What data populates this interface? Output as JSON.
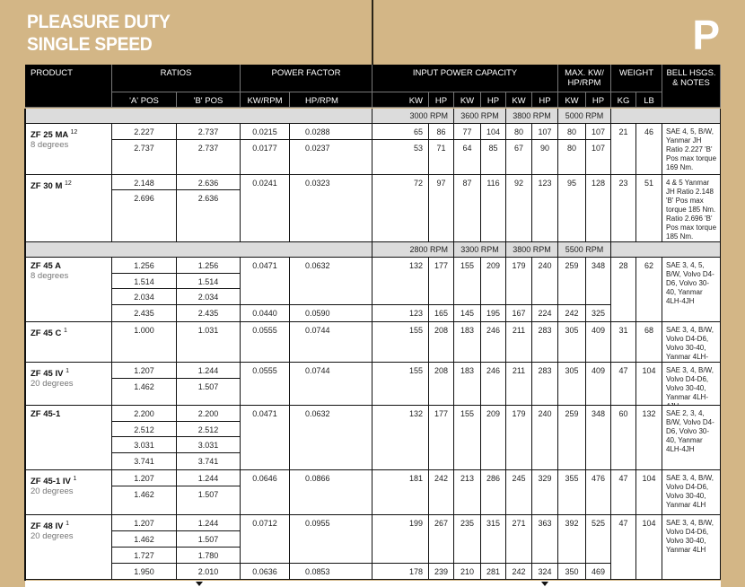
{
  "header": {
    "title_line1": "PLEASURE DUTY",
    "title_line2": "SINGLE SPEED",
    "section_letter": "P"
  },
  "columns": {
    "product": "PRODUCT",
    "ratios": "RATIOS",
    "power_factor": "POWER FACTOR",
    "input_power_capacity": "INPUT POWER CAPACITY",
    "max": "MAX. KW/ HP/RPM",
    "weight": "WEIGHT",
    "notes": "BELL HSGS. & NOTES",
    "sub": [
      "'A' POS",
      "'B' POS",
      "KW/RPM",
      "HP/RPM",
      "KW",
      "HP",
      "KW",
      "HP",
      "KW",
      "HP",
      "KW",
      "HP",
      "KG",
      "LB"
    ]
  },
  "rpm_rows": [
    [
      "3000 RPM",
      "3600 RPM",
      "3800 RPM",
      "5000 RPM"
    ],
    [
      "2800 RPM",
      "3300 RPM",
      "3800 RPM",
      "5500 RPM"
    ]
  ],
  "products": [
    {
      "name": "ZF 25 MA",
      "sup": "12",
      "subtitle": "8 degrees",
      "section": 0,
      "ratios": [
        [
          "2.227",
          "2.737"
        ],
        [
          "2.737",
          "2.737"
        ]
      ],
      "groups": [
        {
          "rows": 1,
          "kw_rpm": "0.0215",
          "hp_rpm": "0.0288",
          "power": [
            "65",
            "86",
            "77",
            "104",
            "80",
            "107",
            "80",
            "107"
          ]
        },
        {
          "rows": 1,
          "kw_rpm": "0.0177",
          "hp_rpm": "0.0237",
          "power": [
            "53",
            "71",
            "64",
            "85",
            "67",
            "90",
            "80",
            "107"
          ]
        }
      ],
      "kg": "21",
      "lb": "46",
      "notes": "SAE 4, 5, B/W, Yanmar JH Ratio 2.227 'B' Pos max torque 169 Nm."
    },
    {
      "name": "ZF 30 M",
      "sup": "12",
      "subtitle": "",
      "section": 0,
      "ratios": [
        [
          "2.148",
          "2.636"
        ],
        [
          "2.696",
          "2.636"
        ]
      ],
      "groups": [
        {
          "rows": 2,
          "kw_rpm": "0.0241",
          "hp_rpm": "0.0323",
          "power": [
            "72",
            "97",
            "87",
            "116",
            "92",
            "123",
            "95",
            "128"
          ]
        }
      ],
      "kg": "23",
      "lb": "51",
      "notes": "4 & 5 Yanmar JH Ratio 2.148 'B' Pos max torque 185 Nm. Ratio 2.696 'B' Pos max torque 185 Nm."
    },
    {
      "name": "ZF 45 A",
      "sup": "",
      "subtitle": "8 degrees",
      "section": 1,
      "ratios": [
        [
          "1.256",
          "1.256"
        ],
        [
          "1.514",
          "1.514"
        ],
        [
          "2.034",
          "2.034"
        ],
        [
          "2.435",
          "2.435"
        ]
      ],
      "groups": [
        {
          "rows": 3,
          "kw_rpm": "0.0471",
          "hp_rpm": "0.0632",
          "power": [
            "132",
            "177",
            "155",
            "209",
            "179",
            "240",
            "259",
            "348"
          ]
        },
        {
          "rows": 1,
          "kw_rpm": "0.0440",
          "hp_rpm": "0.0590",
          "power": [
            "123",
            "165",
            "145",
            "195",
            "167",
            "224",
            "242",
            "325"
          ]
        }
      ],
      "kg": "28",
      "lb": "62",
      "notes": "SAE 3, 4, 5, B/W, Volvo D4-D6, Volvo 30-40, Yanmar 4LH-4JH"
    },
    {
      "name": "ZF 45 C",
      "sup": "1",
      "subtitle": "",
      "section": 1,
      "ratios": [
        [
          "1.000",
          "1.031"
        ]
      ],
      "groups": [
        {
          "rows": 1,
          "kw_rpm": "0.0555",
          "hp_rpm": "0.0744",
          "power": [
            "155",
            "208",
            "183",
            "246",
            "211",
            "283",
            "305",
            "409"
          ]
        }
      ],
      "kg": "31",
      "lb": "68",
      "notes": "SAE 3, 4, B/W, Volvo D4-D6, Volvo 30-40, Yanmar 4LH-4JH"
    },
    {
      "name": "ZF 45 IV",
      "sup": "1",
      "subtitle": "20 degrees",
      "section": 1,
      "ratios": [
        [
          "1.207",
          "1.244"
        ],
        [
          "1.462",
          "1.507"
        ]
      ],
      "groups": [
        {
          "rows": 2,
          "kw_rpm": "0.0555",
          "hp_rpm": "0.0744",
          "power": [
            "155",
            "208",
            "183",
            "246",
            "211",
            "283",
            "305",
            "409"
          ]
        }
      ],
      "kg": "47",
      "lb": "104",
      "notes": "SAE 3, 4, B/W, Volvo D4-D6, Volvo 30-40, Yanmar 4LH-4JH"
    },
    {
      "name": "ZF 45-1",
      "sup": "",
      "subtitle": "",
      "section": 1,
      "ratios": [
        [
          "2.200",
          "2.200"
        ],
        [
          "2.512",
          "2.512"
        ],
        [
          "3.031",
          "3.031"
        ],
        [
          "3.741",
          "3.741"
        ]
      ],
      "groups": [
        {
          "rows": 4,
          "kw_rpm": "0.0471",
          "hp_rpm": "0.0632",
          "power": [
            "132",
            "177",
            "155",
            "209",
            "179",
            "240",
            "259",
            "348"
          ]
        }
      ],
      "kg": "60",
      "lb": "132",
      "notes": "SAE 2, 3, 4, B/W, Volvo D4-D6, Volvo 30-40, Yanmar 4LH-4JH"
    },
    {
      "name": "ZF 45-1 IV",
      "sup": "1",
      "subtitle": "20 degrees",
      "section": 1,
      "ratios": [
        [
          "1.207",
          "1.244"
        ],
        [
          "1.462",
          "1.507"
        ]
      ],
      "groups": [
        {
          "rows": 2,
          "kw_rpm": "0.0646",
          "hp_rpm": "0.0866",
          "power": [
            "181",
            "242",
            "213",
            "286",
            "245",
            "329",
            "355",
            "476"
          ]
        }
      ],
      "kg": "47",
      "lb": "104",
      "notes": "SAE 3, 4, B/W, Volvo D4-D6, Volvo 30-40, Yanmar 4LH"
    },
    {
      "name": "ZF 48 IV",
      "sup": "1",
      "subtitle": "20 degrees",
      "section": 1,
      "ratios": [
        [
          "1.207",
          "1.244"
        ],
        [
          "1.462",
          "1.507"
        ],
        [
          "1.727",
          "1.780"
        ],
        [
          "1.950",
          "2.010"
        ]
      ],
      "groups": [
        {
          "rows": 3,
          "kw_rpm": "0.0712",
          "hp_rpm": "0.0955",
          "power": [
            "199",
            "267",
            "235",
            "315",
            "271",
            "363",
            "392",
            "525"
          ]
        },
        {
          "rows": 1,
          "kw_rpm": "0.0636",
          "hp_rpm": "0.0853",
          "power": [
            "178",
            "239",
            "210",
            "281",
            "242",
            "324",
            "350",
            "469"
          ]
        }
      ],
      "kg": "47",
      "lb": "104",
      "notes": "SAE 3, 4, B/W, Volvo D4-D6, Volvo 30-40, Yanmar 4LH"
    }
  ],
  "colors": {
    "background": "#d3b686",
    "header": "#000000",
    "rpm_band": "#dcdcdc"
  }
}
